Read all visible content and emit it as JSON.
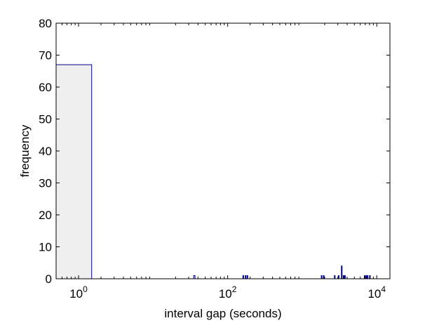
{
  "chart_data": {
    "type": "bar",
    "title": "",
    "xlabel": "interval gap (seconds)",
    "ylabel": "frequency",
    "x_scale": "log",
    "xlim": [
      0.5,
      15000
    ],
    "ylim": [
      0,
      80
    ],
    "y_ticks": [
      0,
      10,
      20,
      30,
      40,
      50,
      60,
      70,
      80
    ],
    "x_ticks": [
      {
        "value": 1,
        "base": "10",
        "exp": "0"
      },
      {
        "value": 100,
        "base": "10",
        "exp": "2"
      },
      {
        "value": 10000,
        "base": "10",
        "exp": "4"
      }
    ],
    "bars": [
      {
        "x0": 0.5,
        "x1": 1.5,
        "value": 67
      },
      {
        "x0": 35,
        "x1": 36.5,
        "value": 1
      },
      {
        "x0": 160,
        "x1": 163,
        "value": 1
      },
      {
        "x0": 172,
        "x1": 175,
        "value": 1
      },
      {
        "x0": 182,
        "x1": 185,
        "value": 1
      },
      {
        "x0": 1800,
        "x1": 1830,
        "value": 1
      },
      {
        "x0": 1920,
        "x1": 1950,
        "value": 1
      },
      {
        "x0": 2700,
        "x1": 2750,
        "value": 1
      },
      {
        "x0": 3050,
        "x1": 3110,
        "value": 1
      },
      {
        "x0": 3350,
        "x1": 3420,
        "value": 4
      },
      {
        "x0": 3550,
        "x1": 3620,
        "value": 1
      },
      {
        "x0": 3700,
        "x1": 3770,
        "value": 1
      },
      {
        "x0": 6800,
        "x1": 6900,
        "value": 1
      },
      {
        "x0": 7150,
        "x1": 7250,
        "value": 1
      },
      {
        "x0": 7450,
        "x1": 7550,
        "value": 1
      },
      {
        "x0": 8000,
        "x1": 8100,
        "value": 1
      }
    ],
    "grid": false,
    "colors": {
      "bar_fill": "#efefef",
      "bar_edge": "#00008b",
      "axis": "#000000"
    }
  }
}
